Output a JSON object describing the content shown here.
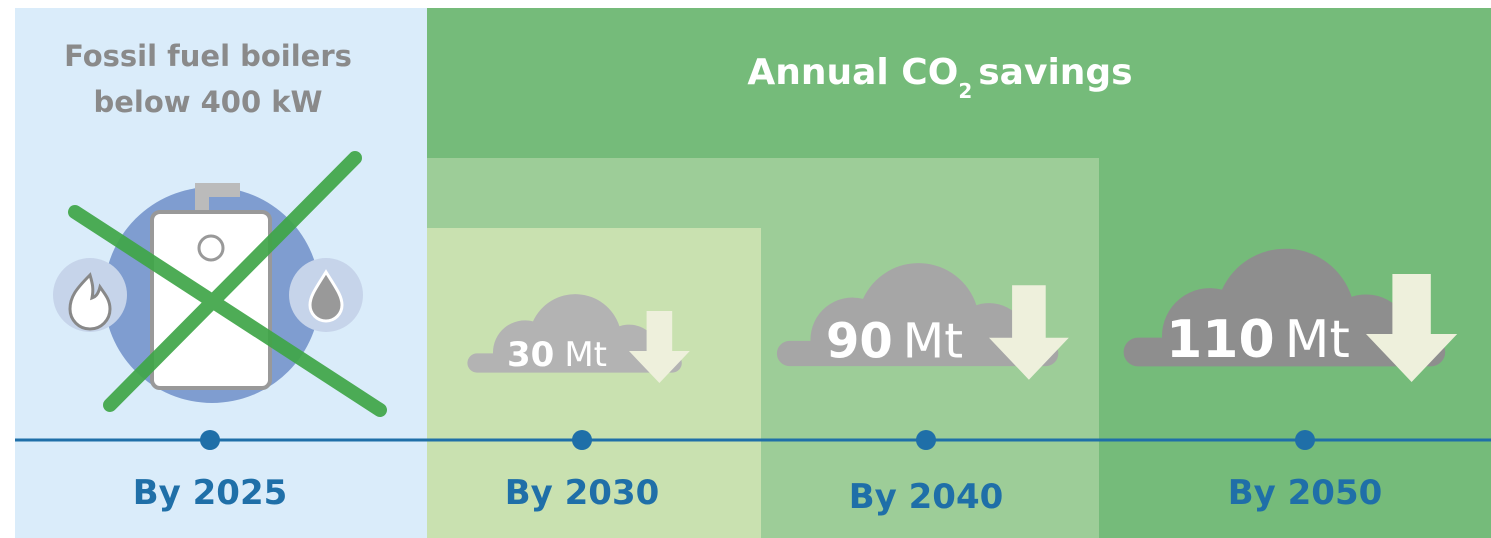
{
  "left_panel": {
    "lines": [
      "Fossil fuel boilers",
      "below 400 kW"
    ]
  },
  "header": {
    "title_main": "Annual CO",
    "title_sub": "2",
    "title_rest": "savings"
  },
  "milestones": [
    {
      "label": "By 2025"
    },
    {
      "label": "By 2030",
      "saving": 30,
      "unit": "Mt"
    },
    {
      "label": "By 2040",
      "saving": 90,
      "unit": "Mt"
    },
    {
      "label": "By 2050",
      "saving": 110,
      "unit": "Mt"
    }
  ]
}
